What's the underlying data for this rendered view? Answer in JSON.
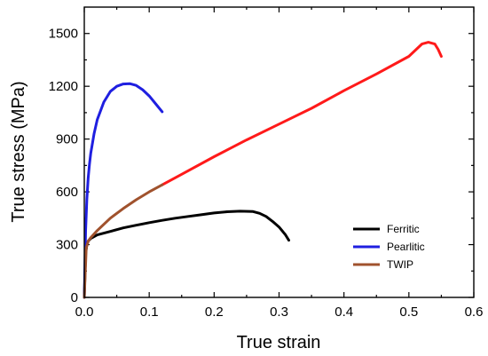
{
  "chart_data": {
    "type": "line",
    "xlabel": "True strain",
    "ylabel": "True stress (MPa)",
    "xlim": [
      0.0,
      0.6
    ],
    "ylim": [
      0,
      1650
    ],
    "x_ticks": [
      0.0,
      0.1,
      0.2,
      0.3,
      0.4,
      0.5,
      0.6
    ],
    "x_tick_labels": [
      "0.0",
      "0.1",
      "0.2",
      "0.3",
      "0.4",
      "0.5",
      "0.6"
    ],
    "y_ticks": [
      0,
      300,
      600,
      900,
      1200,
      1500
    ],
    "y_tick_labels": [
      "0",
      "300",
      "600",
      "900",
      "1200",
      "1500"
    ],
    "grid": false,
    "legend_position": "bottom-right",
    "series": [
      {
        "name": "Ferritic",
        "color": "#000000",
        "x": [
          0.0,
          0.002,
          0.004,
          0.006,
          0.01,
          0.02,
          0.04,
          0.06,
          0.08,
          0.1,
          0.12,
          0.14,
          0.16,
          0.18,
          0.2,
          0.22,
          0.24,
          0.26,
          0.27,
          0.28,
          0.29,
          0.3,
          0.31,
          0.315
        ],
        "y": [
          0,
          250,
          300,
          320,
          335,
          355,
          375,
          395,
          410,
          425,
          438,
          450,
          460,
          470,
          480,
          487,
          490,
          488,
          478,
          460,
          432,
          400,
          355,
          325
        ]
      },
      {
        "name": "Pearlitic",
        "color": "#1f1fe0",
        "x": [
          0.0,
          0.002,
          0.004,
          0.006,
          0.008,
          0.01,
          0.015,
          0.02,
          0.03,
          0.04,
          0.05,
          0.06,
          0.07,
          0.08,
          0.09,
          0.1,
          0.11,
          0.12
        ],
        "y": [
          0,
          380,
          560,
          680,
          760,
          820,
          930,
          1010,
          1110,
          1170,
          1200,
          1213,
          1215,
          1205,
          1180,
          1145,
          1100,
          1055
        ]
      },
      {
        "name": "TWIP",
        "color": "#a0522d",
        "x": [
          0.0,
          0.003,
          0.006,
          0.01,
          0.02,
          0.04,
          0.06,
          0.08,
          0.1,
          0.12
        ],
        "y": [
          0,
          280,
          320,
          340,
          380,
          450,
          505,
          555,
          600,
          640
        ]
      },
      {
        "name": "",
        "color": "#ff1a1a",
        "x": [
          0.12,
          0.15,
          0.2,
          0.25,
          0.3,
          0.35,
          0.4,
          0.45,
          0.5,
          0.52,
          0.53,
          0.54,
          0.545,
          0.55
        ],
        "y": [
          640,
          700,
          800,
          895,
          985,
          1075,
          1175,
          1270,
          1370,
          1440,
          1450,
          1440,
          1410,
          1370
        ]
      }
    ]
  }
}
